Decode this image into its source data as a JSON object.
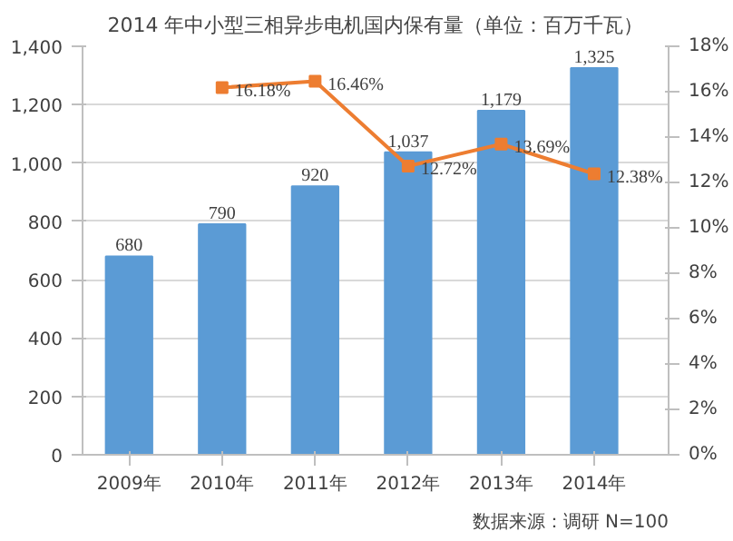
{
  "chart_data": {
    "type": "bar",
    "title": "2014 年中小型三相异步电机国内保有量（单位：百万千瓦）",
    "categories": [
      "2009年",
      "2010年",
      "2011年",
      "2012年",
      "2013年",
      "2014年"
    ],
    "series": [
      {
        "color": "#5b9bd5",
        "values": [
          680,
          790,
          920,
          1037,
          1179,
          1325
        ],
        "value_labels": [
          "680",
          "790",
          "920",
          "1,037",
          "1,179",
          "1,325"
        ]
      },
      {
        "type": "line",
        "axis": "y2",
        "color": "#ed7d31",
        "values": [
          null,
          16.18,
          16.46,
          12.72,
          13.69,
          12.38
        ],
        "value_labels": [
          null,
          "16.18%",
          "16.46%",
          "12.72%",
          "13.69%",
          "12.38%"
        ]
      }
    ],
    "ylim": [
      0,
      1400
    ],
    "yticks": [
      0,
      {
        "value": 200,
        "label": "200"
      },
      {
        "value": 400,
        "label": "400"
      },
      {
        "value": 600,
        "label": "600"
      },
      {
        "value": 800,
        "label": "800"
      },
      {
        "value": 1000,
        "label": "1,000"
      },
      {
        "value": 1200,
        "label": "1,200"
      },
      {
        "value": 1400,
        "label": "1,400"
      }
    ],
    "y2lim": [
      0,
      18
    ],
    "y2ticks": [
      {
        "value": 0,
        "label": "0%"
      },
      {
        "value": 2,
        "label": "2%"
      },
      {
        "value": 4,
        "label": "4%"
      },
      {
        "value": 6,
        "label": "6%"
      },
      {
        "value": 8,
        "label": "8%"
      },
      {
        "value": 10,
        "label": "10%"
      },
      {
        "value": 12,
        "label": "12%"
      },
      {
        "value": 14,
        "label": "14%"
      },
      {
        "value": 16,
        "label": "16%"
      },
      {
        "value": 18,
        "label": "18%"
      }
    ],
    "grid": "y",
    "marker": "square",
    "annotations": [
      "数据来源：调研 N=100"
    ]
  }
}
